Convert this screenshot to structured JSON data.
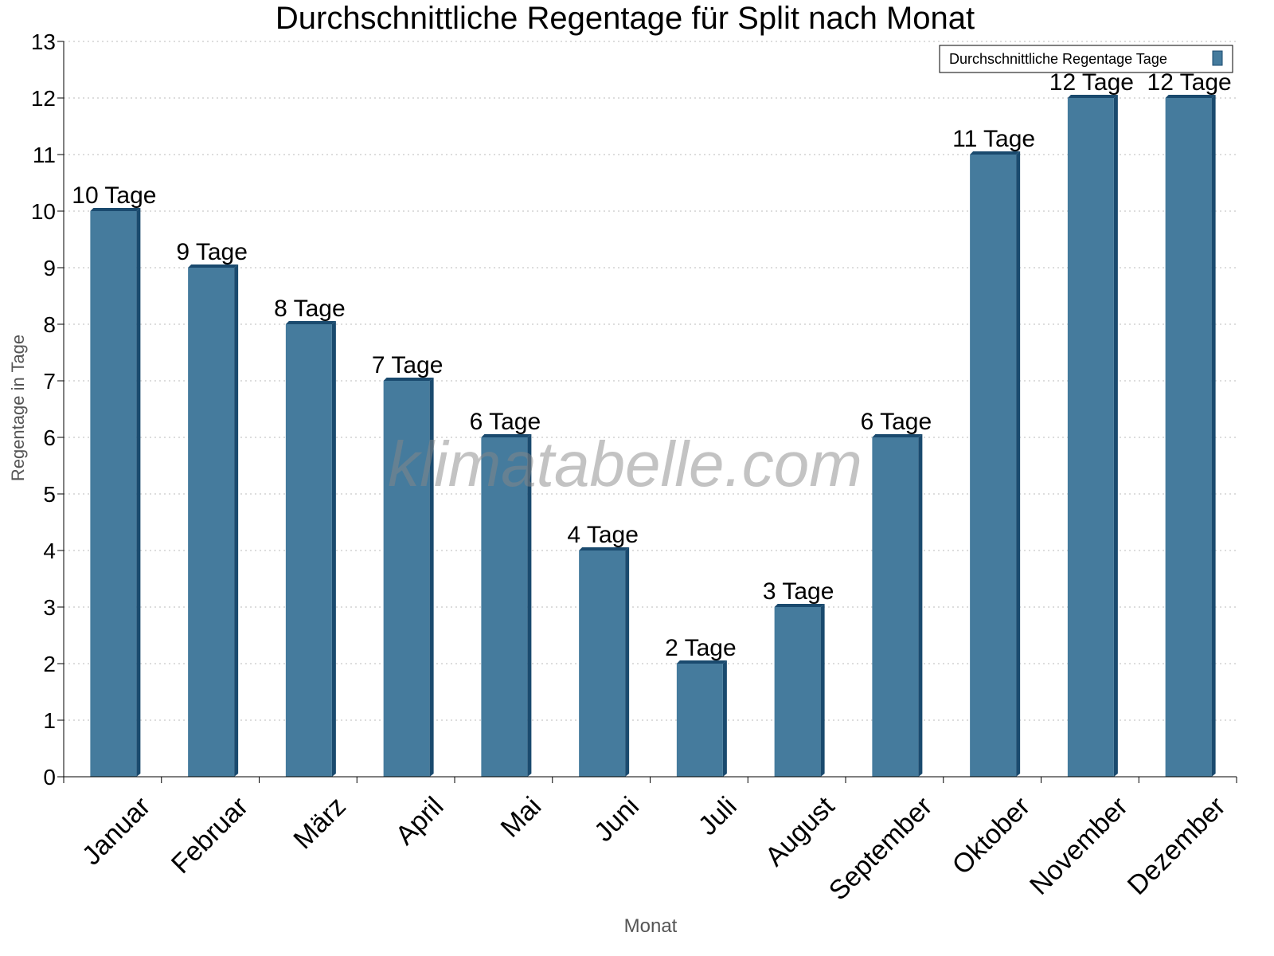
{
  "chart_data": {
    "type": "bar",
    "title": "Durchschnittliche Regentage für Split nach Monat",
    "xlabel": "Monat",
    "ylabel": "Regentage in Tage",
    "categories": [
      "Januar",
      "Februar",
      "März",
      "April",
      "Mai",
      "Juni",
      "Juli",
      "August",
      "September",
      "Oktober",
      "November",
      "Dezember"
    ],
    "series": [
      {
        "name": "Durchschnittliche Regentage Tage",
        "values": [
          10,
          9,
          8,
          7,
          6,
          4,
          2,
          3,
          6,
          11,
          12,
          12
        ],
        "color": "#457b9d",
        "side_color": "#1a4a6e"
      }
    ],
    "data_label_suffix": " Tage",
    "ylim": [
      0,
      13
    ],
    "yticks": [
      0,
      1,
      2,
      3,
      4,
      5,
      6,
      7,
      8,
      9,
      10,
      11,
      12,
      13
    ],
    "grid": true,
    "legend": "top-right",
    "watermark": "klimatabelle.com"
  }
}
